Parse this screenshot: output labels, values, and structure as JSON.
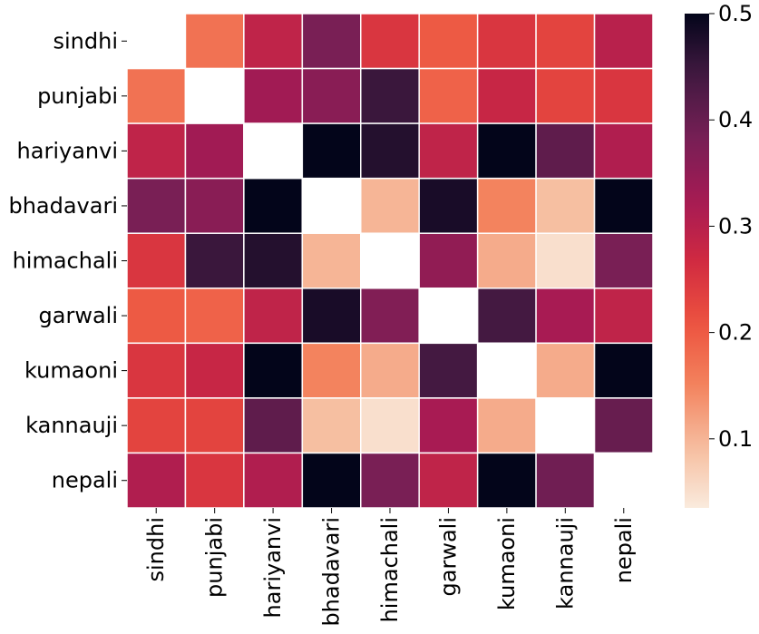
{
  "chart_data": {
    "type": "heatmap",
    "title": "",
    "xlabel": "",
    "ylabel": "",
    "rows": [
      "sindhi",
      "punjabi",
      "hariyanvi",
      "bhadavari",
      "himachali",
      "garwali",
      "kumaoni",
      "kannauji",
      "nepali"
    ],
    "cols": [
      "sindhi",
      "punjabi",
      "hariyanvi",
      "bhadavari",
      "himachali",
      "garwali",
      "kumaoni",
      "kannauji",
      "nepali"
    ],
    "values": [
      [
        null,
        0.17,
        0.29,
        0.38,
        0.25,
        0.2,
        0.25,
        0.23,
        0.3
      ],
      [
        0.17,
        null,
        0.33,
        0.36,
        0.45,
        0.19,
        0.28,
        0.23,
        0.25
      ],
      [
        0.29,
        0.33,
        null,
        0.5,
        0.47,
        0.29,
        0.5,
        0.41,
        0.31
      ],
      [
        0.38,
        0.36,
        0.5,
        null,
        0.1,
        0.48,
        0.15,
        0.09,
        0.5
      ],
      [
        0.25,
        0.45,
        0.47,
        0.1,
        null,
        0.35,
        0.11,
        0.05,
        0.38
      ],
      [
        0.2,
        0.19,
        0.29,
        0.48,
        0.37,
        null,
        0.44,
        0.32,
        0.29
      ],
      [
        0.25,
        0.28,
        0.5,
        0.15,
        0.11,
        0.44,
        null,
        0.11,
        0.5
      ],
      [
        0.23,
        0.23,
        0.41,
        0.09,
        0.05,
        0.32,
        0.11,
        null,
        0.4
      ],
      [
        0.31,
        0.25,
        0.31,
        0.5,
        0.38,
        0.29,
        0.5,
        0.39,
        null
      ]
    ],
    "colorbar": {
      "range": [
        0.035,
        0.5
      ],
      "ticks": [
        "0.1",
        "0.2",
        "0.3",
        "0.4",
        "0.5"
      ],
      "tick_values": [
        0.1,
        0.2,
        0.3,
        0.4,
        0.5
      ]
    },
    "colormap": "rocket",
    "missing_color": "#ffffff",
    "cell_border_color": "#ffffff"
  }
}
